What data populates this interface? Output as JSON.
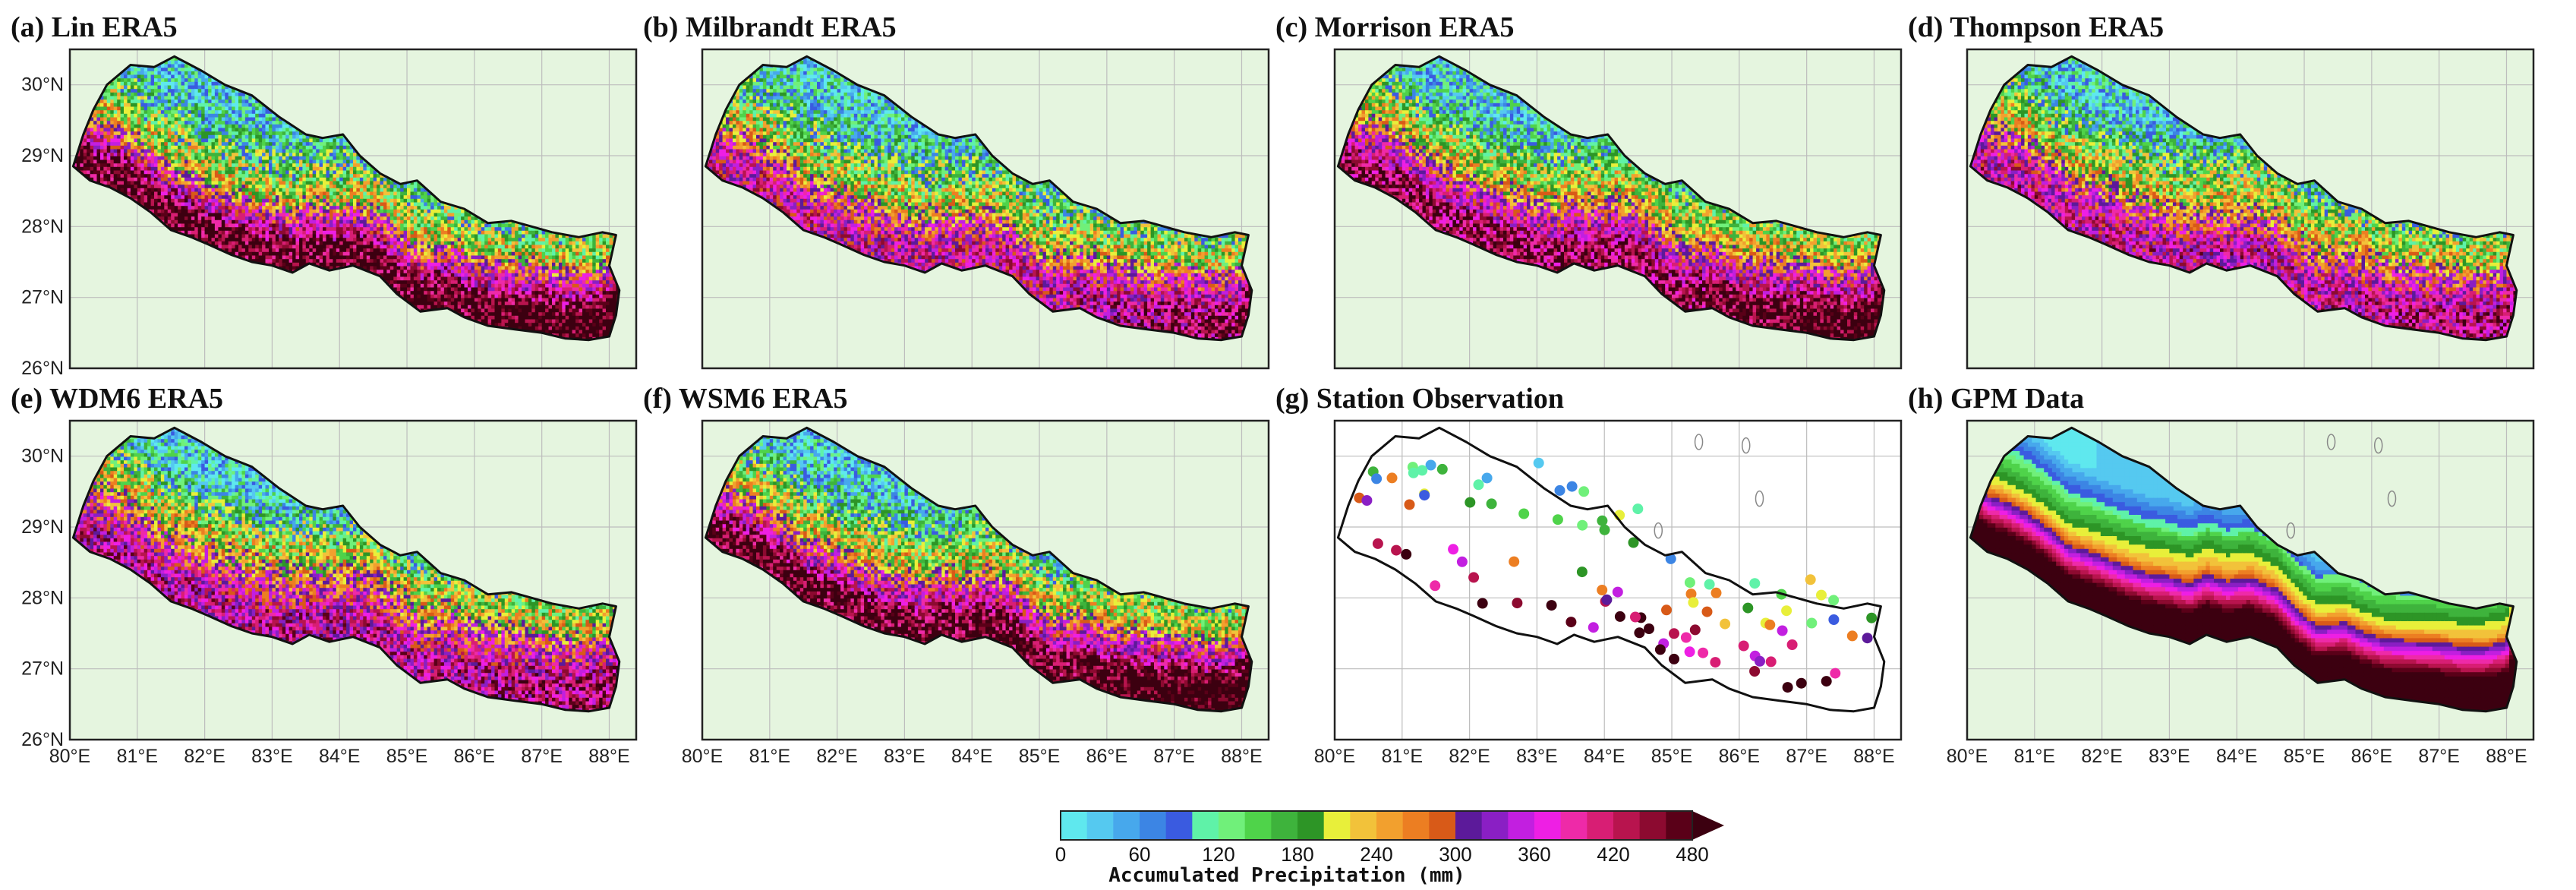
{
  "figure": {
    "panels": [
      {
        "id": "a",
        "title": "(a) Lin ERA5",
        "type": "model",
        "variant": "lin"
      },
      {
        "id": "b",
        "title": "(b) Milbrandt ERA5",
        "type": "model",
        "variant": "milbrandt"
      },
      {
        "id": "c",
        "title": "(c) Morrison ERA5",
        "type": "model",
        "variant": "morrison"
      },
      {
        "id": "d",
        "title": "(d) Thompson ERA5",
        "type": "model",
        "variant": "thompson"
      },
      {
        "id": "e",
        "title": "(e) WDM6 ERA5",
        "type": "model",
        "variant": "wdm6"
      },
      {
        "id": "f",
        "title": "(f) WSM6 ERA5",
        "type": "model",
        "variant": "wsm6"
      },
      {
        "id": "g",
        "title": "(g) Station Observation",
        "type": "station",
        "variant": "station"
      },
      {
        "id": "h",
        "title": "(h) GPM Data",
        "type": "gpm",
        "variant": "gpm"
      }
    ],
    "lon_ticks": [
      "80°E",
      "81°E",
      "82°E",
      "83°E",
      "84°E",
      "85°E",
      "86°E",
      "87°E",
      "88°E"
    ],
    "lat_ticks": [
      "30°N",
      "29°N",
      "28°N",
      "27°N",
      "26°N"
    ],
    "lon_range": [
      80,
      88.4
    ],
    "lat_range": [
      26,
      30.5
    ],
    "colorbar": {
      "label": "Accumulated Precipitation (mm)",
      "ticks": [
        "0",
        "60",
        "120",
        "180",
        "240",
        "300",
        "360",
        "420",
        "480"
      ],
      "levels": 24,
      "max": 480,
      "extend": "max",
      "colors": [
        "#5fe8ee",
        "#55c9f0",
        "#47a8ec",
        "#3c85e4",
        "#3a5be0",
        "#5ff2a8",
        "#70f07a",
        "#4fd34a",
        "#3eb33c",
        "#2d9526",
        "#e8ef3a",
        "#f2c23a",
        "#f2a02e",
        "#ec7e22",
        "#d85a18",
        "#5c1a9a",
        "#8a1fc4",
        "#c21fe0",
        "#ee1fe4",
        "#ee2aa8",
        "#d81e74",
        "#b8144e",
        "#8c0a30",
        "#5a0018"
      ],
      "extend_color": "#3c0010"
    },
    "colors": {
      "land_bg": "#e5f5df",
      "frame": "#222222",
      "border": "#111111",
      "grid": "#bdbdbd"
    }
  }
}
